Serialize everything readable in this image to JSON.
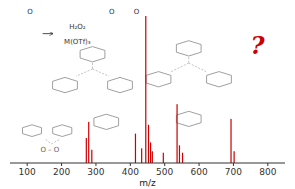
{
  "chart_data": {
    "type": "bar",
    "x": [
      272,
      279,
      288,
      415,
      433,
      445,
      453,
      459,
      464,
      496,
      536,
      543,
      552,
      693,
      702
    ],
    "values": [
      0.17,
      0.28,
      0.09,
      0.2,
      0.1,
      1.0,
      0.26,
      0.14,
      0.08,
      0.07,
      0.4,
      0.12,
      0.07,
      0.3,
      0.08
    ],
    "color": "#cc0000",
    "xlim": [
      50,
      850
    ],
    "xticks": [
      100,
      200,
      300,
      400,
      500,
      600,
      700,
      800
    ],
    "ylim": [
      0,
      1.0
    ],
    "xlabel": "m/z",
    "tick_labels": "x",
    "grid": false,
    "annotations": [
      "O",
      "H₂O₂",
      "M(OTf)₃",
      "O",
      "O",
      "O – O",
      "?"
    ]
  }
}
